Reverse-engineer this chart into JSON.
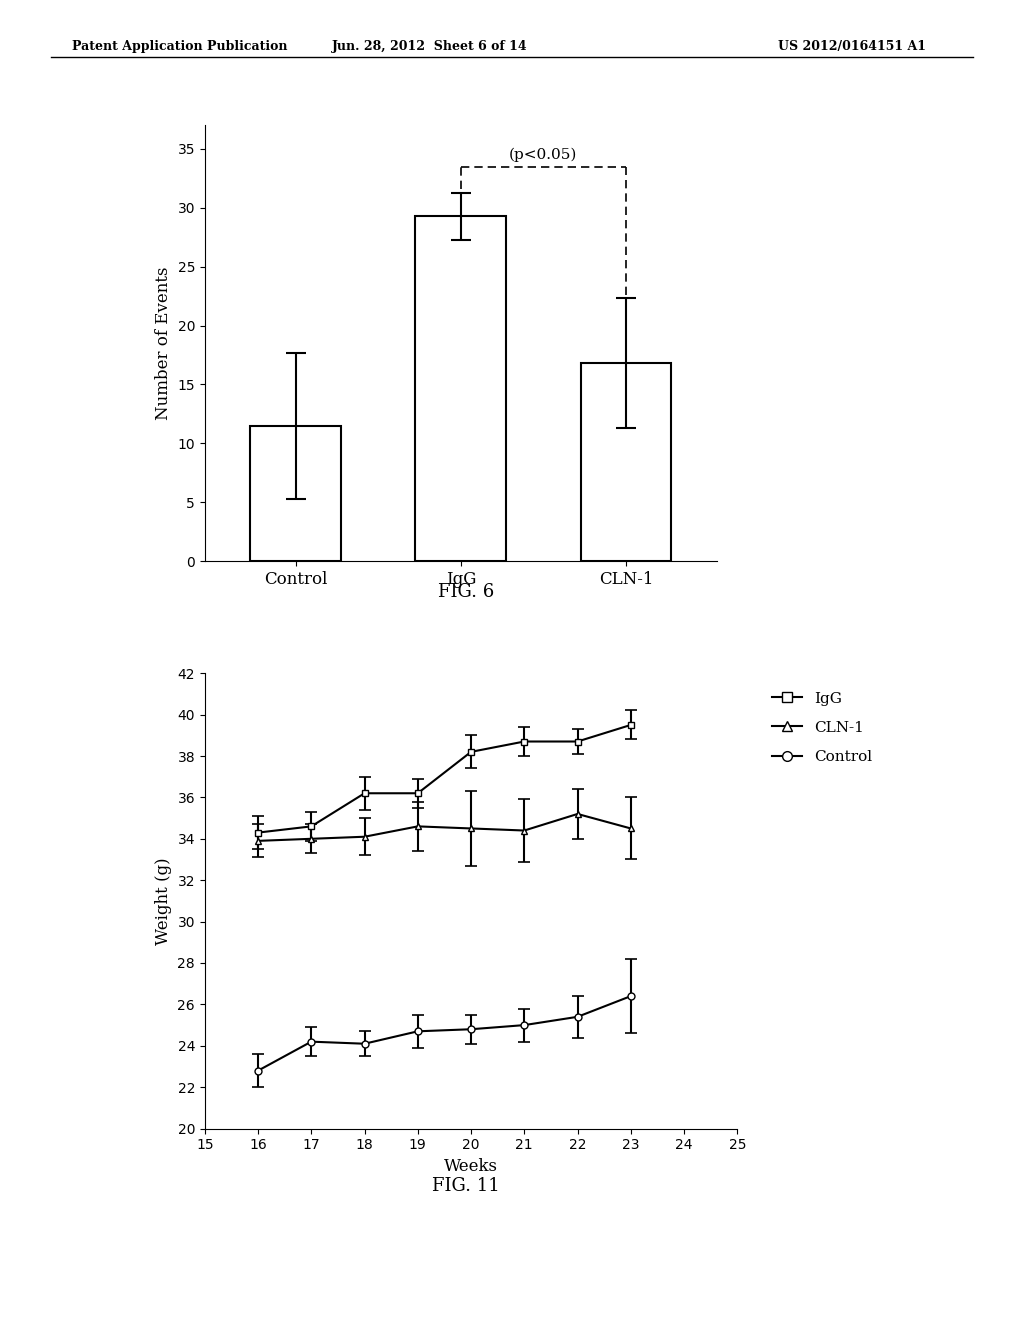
{
  "header_left": "Patent Application Publication",
  "header_center": "Jun. 28, 2012  Sheet 6 of 14",
  "header_right": "US 2012/0164151 A1",
  "fig6": {
    "title": "FIG. 6",
    "categories": [
      "Control",
      "IgG",
      "CLN-1"
    ],
    "values": [
      11.5,
      29.3,
      16.8
    ],
    "errors": [
      6.2,
      2.0,
      5.5
    ],
    "ylabel": "Number of Events",
    "ylim": [
      0,
      37
    ],
    "yticks": [
      0,
      5,
      10,
      15,
      20,
      25,
      30,
      35
    ],
    "sig_label": "(p<0.05)",
    "sig_bar_y": 33.5
  },
  "fig11": {
    "title": "FIG. 11",
    "xlabel": "Weeks",
    "ylabel": "Weight (g)",
    "xlim": [
      15,
      25
    ],
    "ylim": [
      20,
      42
    ],
    "xticks": [
      15,
      16,
      17,
      18,
      19,
      20,
      21,
      22,
      23,
      24,
      25
    ],
    "yticks": [
      20,
      22,
      24,
      26,
      28,
      30,
      32,
      34,
      36,
      38,
      40,
      42
    ],
    "weeks": [
      16,
      17,
      18,
      19,
      20,
      21,
      22,
      23
    ],
    "IgG_values": [
      34.3,
      34.6,
      36.2,
      36.2,
      38.2,
      38.7,
      38.7,
      39.5
    ],
    "IgG_errors": [
      0.8,
      0.7,
      0.8,
      0.7,
      0.8,
      0.7,
      0.6,
      0.7
    ],
    "CLN1_values": [
      33.9,
      34.0,
      34.1,
      34.6,
      34.5,
      34.4,
      35.2,
      34.5
    ],
    "CLN1_errors": [
      0.8,
      0.7,
      0.9,
      1.2,
      1.8,
      1.5,
      1.2,
      1.5
    ],
    "Control_values": [
      22.8,
      24.2,
      24.1,
      24.7,
      24.8,
      25.0,
      25.4,
      26.4
    ],
    "Control_errors": [
      0.8,
      0.7,
      0.6,
      0.8,
      0.7,
      0.8,
      1.0,
      1.8
    ]
  }
}
